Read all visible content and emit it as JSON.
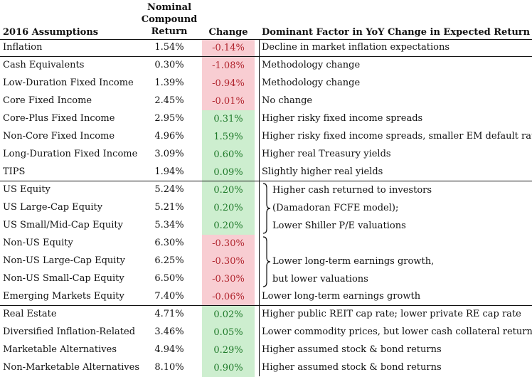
{
  "header": {
    "assumptions": "2016 Assumptions",
    "ncr_line1": "Nominal",
    "ncr_line2": "Compound",
    "ncr_line3": "Return",
    "change": "Change",
    "factor": "Dominant Factor in YoY Change in Expected Return"
  },
  "rows": [
    {
      "name": "Inflation",
      "ret": "1.54%",
      "chg": "-0.14%",
      "sign": "neg",
      "factor": "Decline in market inflation expectations"
    },
    {
      "name": "Cash Equivalents",
      "ret": "0.30%",
      "chg": "-1.08%",
      "sign": "neg",
      "factor": "Methodology change"
    },
    {
      "name": "Low-Duration Fixed Income",
      "ret": "1.39%",
      "chg": "-0.94%",
      "sign": "neg",
      "factor": "Methodology change"
    },
    {
      "name": "Core Fixed Income",
      "ret": "2.45%",
      "chg": "-0.01%",
      "sign": "neg",
      "factor": "No change"
    },
    {
      "name": "Core-Plus Fixed Income",
      "ret": "2.95%",
      "chg": "0.31%",
      "sign": "pos",
      "factor": "Higher risky fixed income spreads"
    },
    {
      "name": "Non-Core Fixed Income",
      "ret": "4.96%",
      "chg": "1.59%",
      "sign": "pos",
      "factor": "Higher risky fixed income spreads, smaller EM default rate"
    },
    {
      "name": "Long-Duration Fixed Income",
      "ret": "3.09%",
      "chg": "0.60%",
      "sign": "pos",
      "factor": "Higher real Treasury yields"
    },
    {
      "name": "TIPS",
      "ret": "1.94%",
      "chg": "0.09%",
      "sign": "pos",
      "factor": "Slightly higher real yields"
    },
    {
      "name": "US Equity",
      "ret": "5.24%",
      "chg": "0.20%",
      "sign": "pos",
      "factor": ""
    },
    {
      "name": "US Large-Cap Equity",
      "ret": "5.21%",
      "chg": "0.20%",
      "sign": "pos",
      "factor": ""
    },
    {
      "name": "US Small/Mid-Cap Equity",
      "ret": "5.34%",
      "chg": "0.20%",
      "sign": "pos",
      "factor": ""
    },
    {
      "name": "Non-US Equity",
      "ret": "6.30%",
      "chg": "-0.30%",
      "sign": "neg",
      "factor": ""
    },
    {
      "name": "Non-US Large-Cap Equity",
      "ret": "6.25%",
      "chg": "-0.30%",
      "sign": "neg",
      "factor": ""
    },
    {
      "name": "Non-US Small-Cap Equity",
      "ret": "6.50%",
      "chg": "-0.30%",
      "sign": "neg",
      "factor": ""
    },
    {
      "name": "Emerging Markets Equity",
      "ret": "7.40%",
      "chg": "-0.06%",
      "sign": "neg",
      "factor": "Lower long-term earnings growth"
    },
    {
      "name": "Real Estate",
      "ret": "4.71%",
      "chg": "0.02%",
      "sign": "pos",
      "factor": "Higher public REIT cap rate; lower private RE cap rate"
    },
    {
      "name": "Diversified Inflation-Related",
      "ret": "3.46%",
      "chg": "0.05%",
      "sign": "pos",
      "factor": "Lower commodity prices, but lower cash collateral return"
    },
    {
      "name": "Marketable Alternatives",
      "ret": "4.94%",
      "chg": "0.29%",
      "sign": "pos",
      "factor": "Higher assumed stock & bond returns"
    },
    {
      "name": "Non-Marketable Alternatives",
      "ret": "8.10%",
      "chg": "0.90%",
      "sign": "pos",
      "factor": "Higher assumed stock & bond returns"
    }
  ],
  "groups": {
    "us_equity": [
      "Higher cash returned to investors",
      "(Damadoran FCFE model);",
      "Lower Shiller P/E valuations"
    ],
    "nonus_equity": [
      "Lower long-term earnings growth,",
      "but lower valuations"
    ]
  }
}
